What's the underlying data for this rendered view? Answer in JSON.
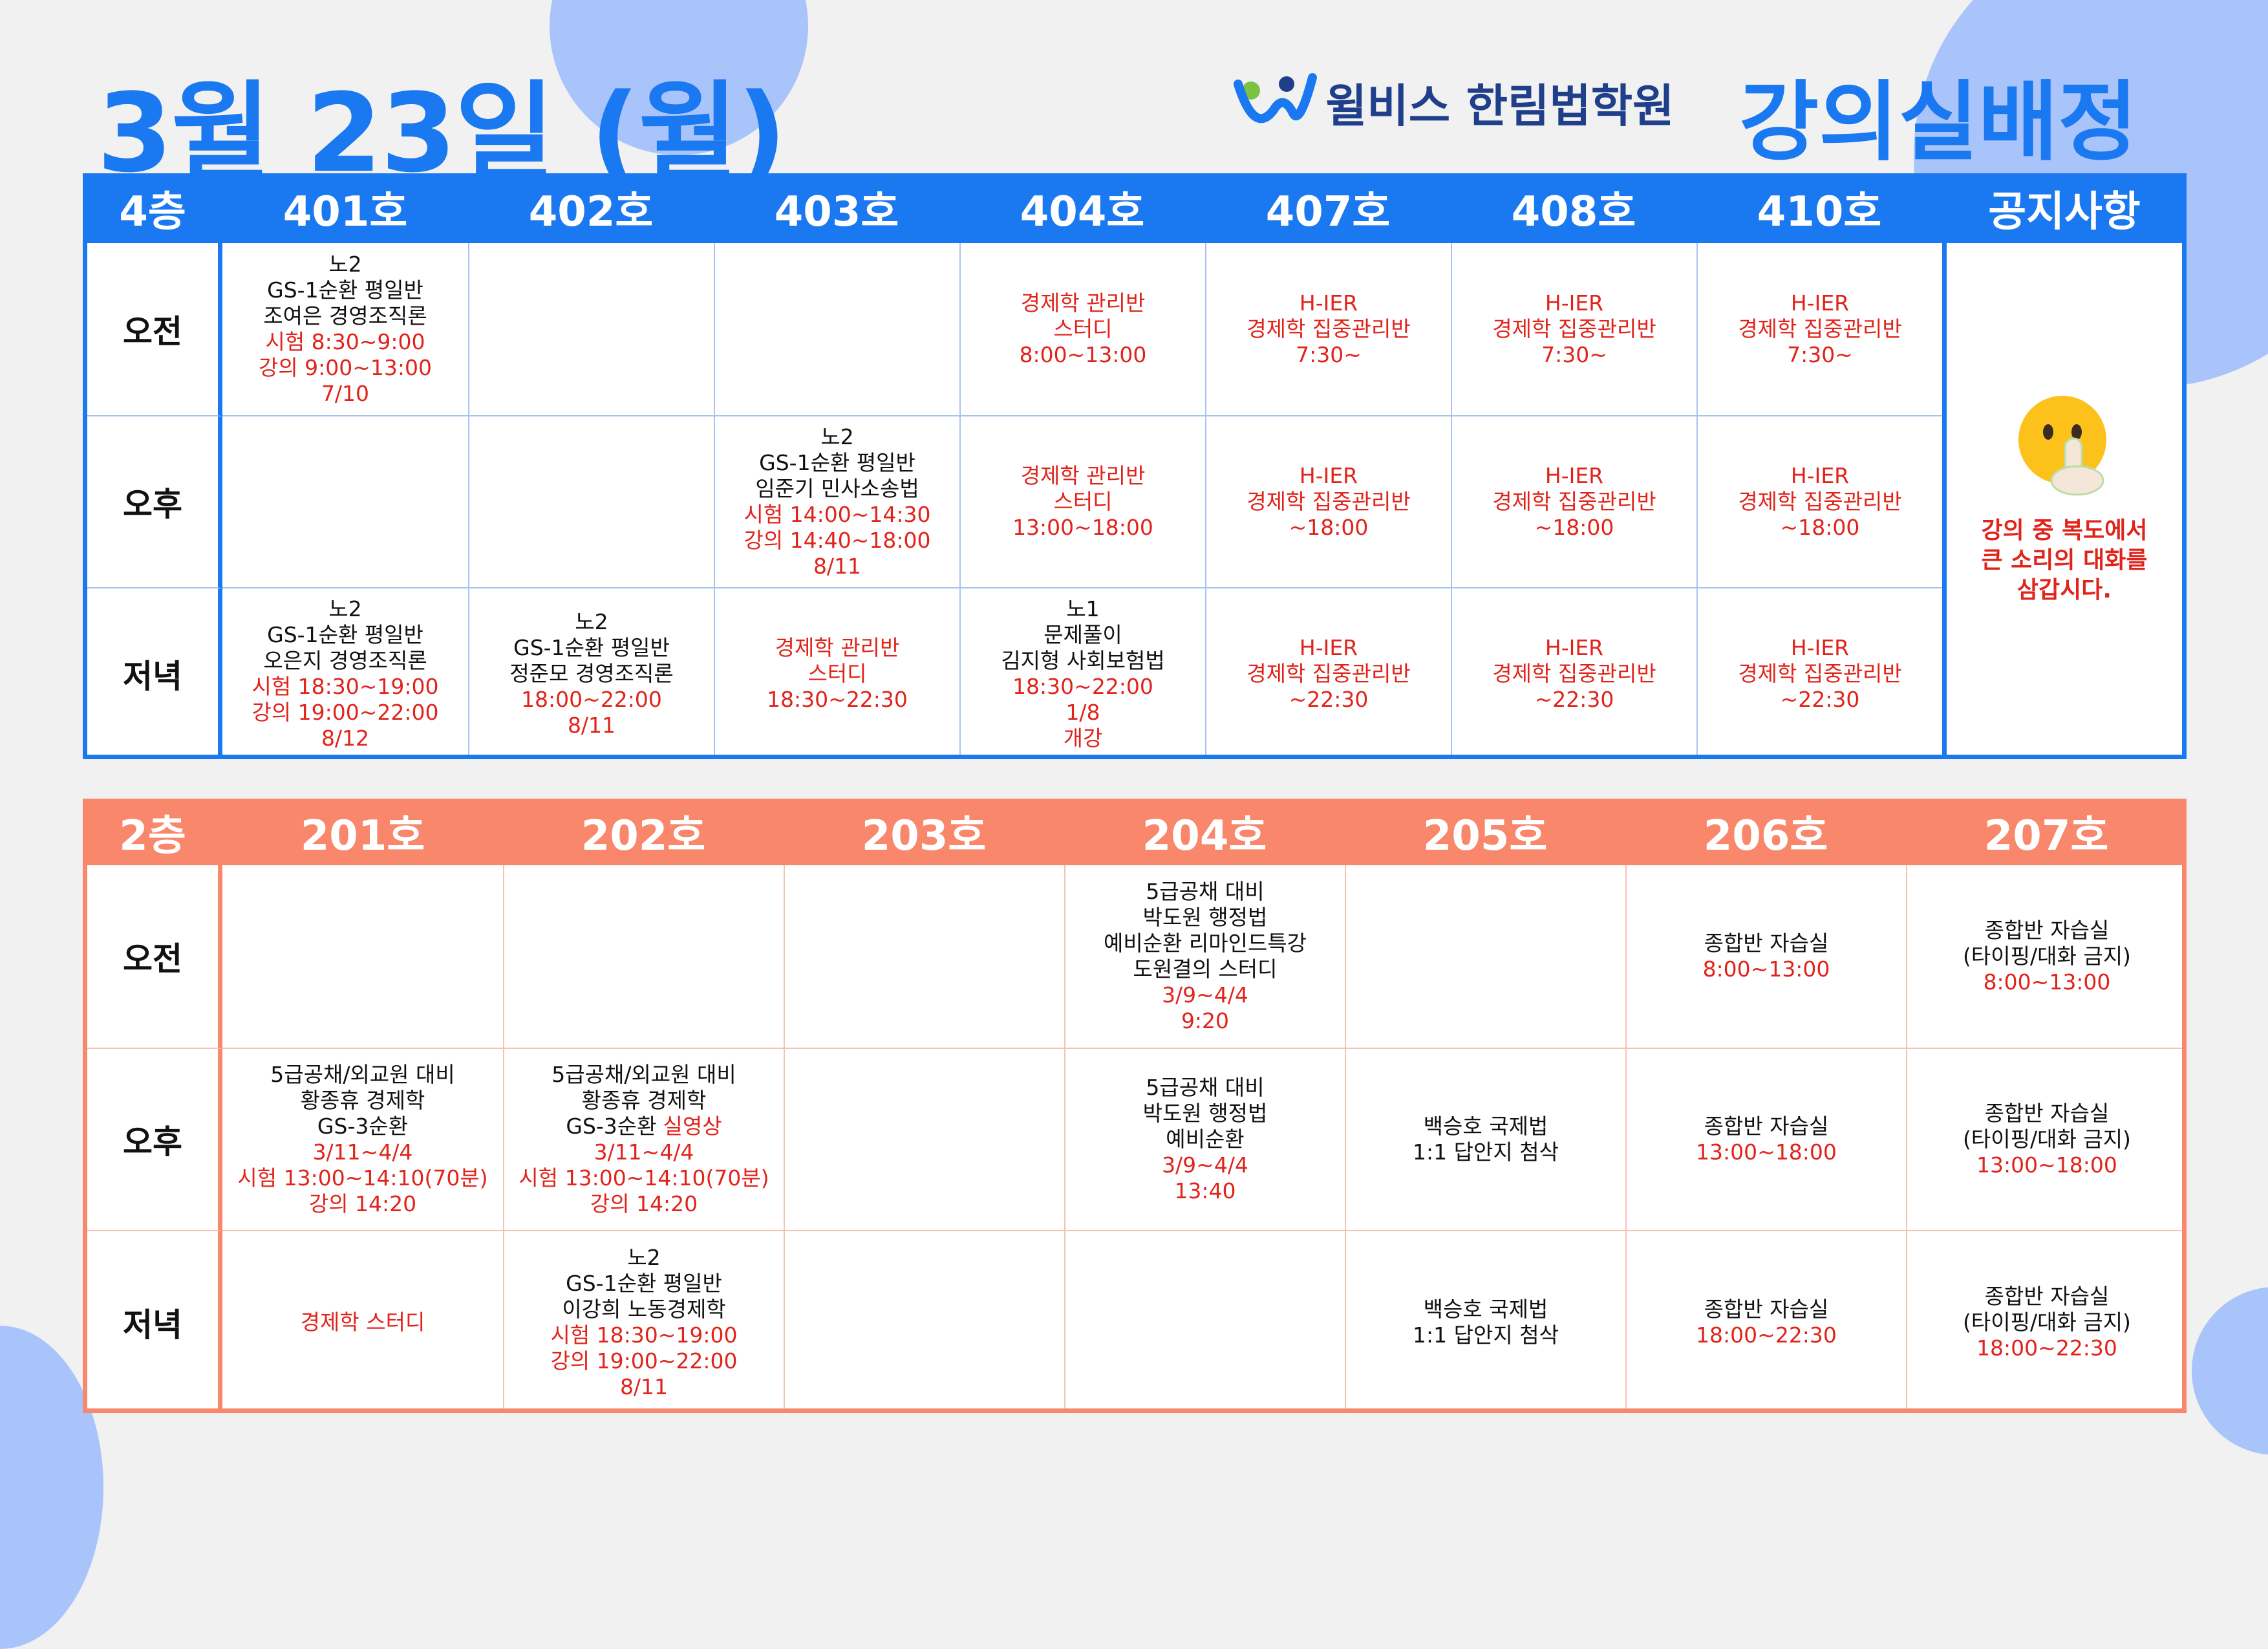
{
  "header": {
    "title": "3월 23일 (월)",
    "brand": "윌비스 한림법학원",
    "heading": "강의실배정"
  },
  "floor4": {
    "label": "4층",
    "rooms": [
      "401호",
      "402호",
      "403호",
      "404호",
      "407호",
      "408호",
      "410호"
    ],
    "notice_title": "공지사항",
    "notice": [
      {
        "text": "강의 중 복도에서",
        "color": "#e0241b"
      },
      {
        "text": "큰 소리의 대화를",
        "color": "#e0241b"
      },
      {
        "text": "삼갑시다.",
        "color": "#e0241b"
      }
    ],
    "rows": [
      {
        "label": "오전",
        "cells": [
          [
            "노2",
            "GS-1순환 평일반",
            "조여은 경영조직론",
            {
              "text": "시험 8:30~9:00",
              "color": "#e0241b"
            },
            {
              "text": "강의 9:00~13:00",
              "color": "#e0241b"
            },
            {
              "text": "7/10",
              "color": "#e0241b"
            }
          ],
          [],
          [],
          [
            {
              "text": "경제학 관리반",
              "color": "#e0241b"
            },
            {
              "text": "스터디",
              "color": "#e0241b"
            },
            {
              "text": "8:00~13:00",
              "color": "#e0241b"
            }
          ],
          [
            {
              "text": "H-IER",
              "color": "#e0241b"
            },
            {
              "text": "경제학 집중관리반",
              "color": "#e0241b"
            },
            {
              "text": "7:30~",
              "color": "#e0241b"
            }
          ],
          [
            {
              "text": "H-IER",
              "color": "#e0241b"
            },
            {
              "text": "경제학 집중관리반",
              "color": "#e0241b"
            },
            {
              "text": "7:30~",
              "color": "#e0241b"
            }
          ],
          [
            {
              "text": "H-IER",
              "color": "#e0241b"
            },
            {
              "text": "경제학 집중관리반",
              "color": "#e0241b"
            },
            {
              "text": "7:30~",
              "color": "#e0241b"
            }
          ]
        ]
      },
      {
        "label": "오후",
        "cells": [
          [],
          [],
          [
            "노2",
            "GS-1순환 평일반",
            "임준기 민사소송법",
            {
              "text": "시험 14:00~14:30",
              "color": "#e0241b"
            },
            {
              "text": "강의 14:40~18:00",
              "color": "#e0241b"
            },
            {
              "text": "8/11",
              "color": "#e0241b"
            }
          ],
          [
            {
              "text": "경제학 관리반",
              "color": "#e0241b"
            },
            {
              "text": "스터디",
              "color": "#e0241b"
            },
            {
              "text": "13:00~18:00",
              "color": "#e0241b"
            }
          ],
          [
            {
              "text": "H-IER",
              "color": "#e0241b"
            },
            {
              "text": "경제학 집중관리반",
              "color": "#e0241b"
            },
            {
              "text": "~18:00",
              "color": "#e0241b"
            }
          ],
          [
            {
              "text": "H-IER",
              "color": "#e0241b"
            },
            {
              "text": "경제학 집중관리반",
              "color": "#e0241b"
            },
            {
              "text": "~18:00",
              "color": "#e0241b"
            }
          ],
          [
            {
              "text": "H-IER",
              "color": "#e0241b"
            },
            {
              "text": "경제학 집중관리반",
              "color": "#e0241b"
            },
            {
              "text": "~18:00",
              "color": "#e0241b"
            }
          ]
        ]
      },
      {
        "label": "저녁",
        "cells": [
          [
            "노2",
            "GS-1순환 평일반",
            "오은지 경영조직론",
            {
              "text": "시험 18:30~19:00",
              "color": "#e0241b"
            },
            {
              "text": "강의 19:00~22:00",
              "color": "#e0241b"
            },
            {
              "text": "8/12",
              "color": "#e0241b"
            }
          ],
          [
            "노2",
            "GS-1순환 평일반",
            "정준모 경영조직론",
            {
              "text": "18:00~22:00",
              "color": "#e0241b"
            },
            {
              "text": "8/11",
              "color": "#e0241b"
            }
          ],
          [
            {
              "text": "경제학 관리반",
              "color": "#e0241b"
            },
            {
              "text": "스터디",
              "color": "#e0241b"
            },
            {
              "text": "18:30~22:30",
              "color": "#e0241b"
            }
          ],
          [
            "노1",
            "문제풀이",
            "김지형 사회보험법",
            {
              "text": "18:30~22:00",
              "color": "#e0241b"
            },
            {
              "text": "1/8",
              "color": "#e0241b"
            },
            {
              "text": "개강",
              "color": "#e0241b"
            }
          ],
          [
            {
              "text": "H-IER",
              "color": "#e0241b"
            },
            {
              "text": "경제학 집중관리반",
              "color": "#e0241b"
            },
            {
              "text": "~22:30",
              "color": "#e0241b"
            }
          ],
          [
            {
              "text": "H-IER",
              "color": "#e0241b"
            },
            {
              "text": "경제학 집중관리반",
              "color": "#e0241b"
            },
            {
              "text": "~22:30",
              "color": "#e0241b"
            }
          ],
          [
            {
              "text": "H-IER",
              "color": "#e0241b"
            },
            {
              "text": "경제학 집중관리반",
              "color": "#e0241b"
            },
            {
              "text": "~22:30",
              "color": "#e0241b"
            }
          ]
        ]
      }
    ]
  },
  "floor2": {
    "label": "2층",
    "rooms": [
      "201호",
      "202호",
      "203호",
      "204호",
      "205호",
      "206호",
      "207호"
    ],
    "rows": [
      {
        "label": "오전",
        "cells": [
          [],
          [],
          [],
          [
            "5급공채 대비",
            "박도원 행정법",
            "예비순환 리마인드특강",
            "도원결의 스터디",
            {
              "text": "3/9~4/4",
              "color": "#e0241b"
            },
            {
              "text": "9:20",
              "color": "#e0241b"
            }
          ],
          [],
          [
            "종합반 자습실",
            {
              "text": "8:00~13:00",
              "color": "#e0241b"
            }
          ],
          [
            "종합반 자습실",
            "(타이핑/대화 금지)",
            {
              "text": "8:00~13:00",
              "color": "#e0241b"
            }
          ]
        ]
      },
      {
        "label": "오후",
        "cells": [
          [
            "5급공채/외교원 대비",
            "황종휴 경제학",
            "GS-3순환",
            {
              "text": "3/11~4/4",
              "color": "#e0241b"
            },
            {
              "text": "시험 13:00~14:10(70분)",
              "color": "#e0241b"
            },
            {
              "text": "강의 14:20",
              "color": "#e0241b"
            }
          ],
          [
            "5급공채/외교원 대비",
            "황종휴 경제학",
            [
              "GS-3순환",
              {
                "text": "실영상",
                "color": "#e0241b"
              }
            ],
            {
              "text": "3/11~4/4",
              "color": "#e0241b"
            },
            {
              "text": "시험 13:00~14:10(70분)",
              "color": "#e0241b"
            },
            {
              "text": "강의 14:20",
              "color": "#e0241b"
            }
          ],
          [],
          [
            "5급공채 대비",
            "박도원 행정법",
            "예비순환",
            {
              "text": "3/9~4/4",
              "color": "#e0241b"
            },
            {
              "text": "13:40",
              "color": "#e0241b"
            }
          ],
          [
            "백승호 국제법",
            "1:1 답안지 첨삭"
          ],
          [
            "종합반 자습실",
            {
              "text": "13:00~18:00",
              "color": "#e0241b"
            }
          ],
          [
            "종합반 자습실",
            "(타이핑/대화 금지)",
            {
              "text": "13:00~18:00",
              "color": "#e0241b"
            }
          ]
        ]
      },
      {
        "label": "저녁",
        "cells": [
          [
            {
              "text": "경제학 스터디",
              "color": "#e0241b"
            }
          ],
          [
            "노2",
            "GS-1순환 평일반",
            "이강희 노동경제학",
            {
              "text": "시험 18:30~19:00",
              "color": "#e0241b"
            },
            {
              "text": "강의 19:00~22:00",
              "color": "#e0241b"
            },
            {
              "text": "8/11",
              "color": "#e0241b"
            }
          ],
          [],
          [],
          [
            "백승호 국제법",
            "1:1 답안지 첨삭"
          ],
          [
            "종합반 자습실",
            {
              "text": "18:00~22:30",
              "color": "#e0241b"
            }
          ],
          [
            "종합반 자습실",
            "(타이핑/대화 금지)",
            {
              "text": "18:00~22:30",
              "color": "#e0241b"
            }
          ]
        ]
      }
    ]
  }
}
